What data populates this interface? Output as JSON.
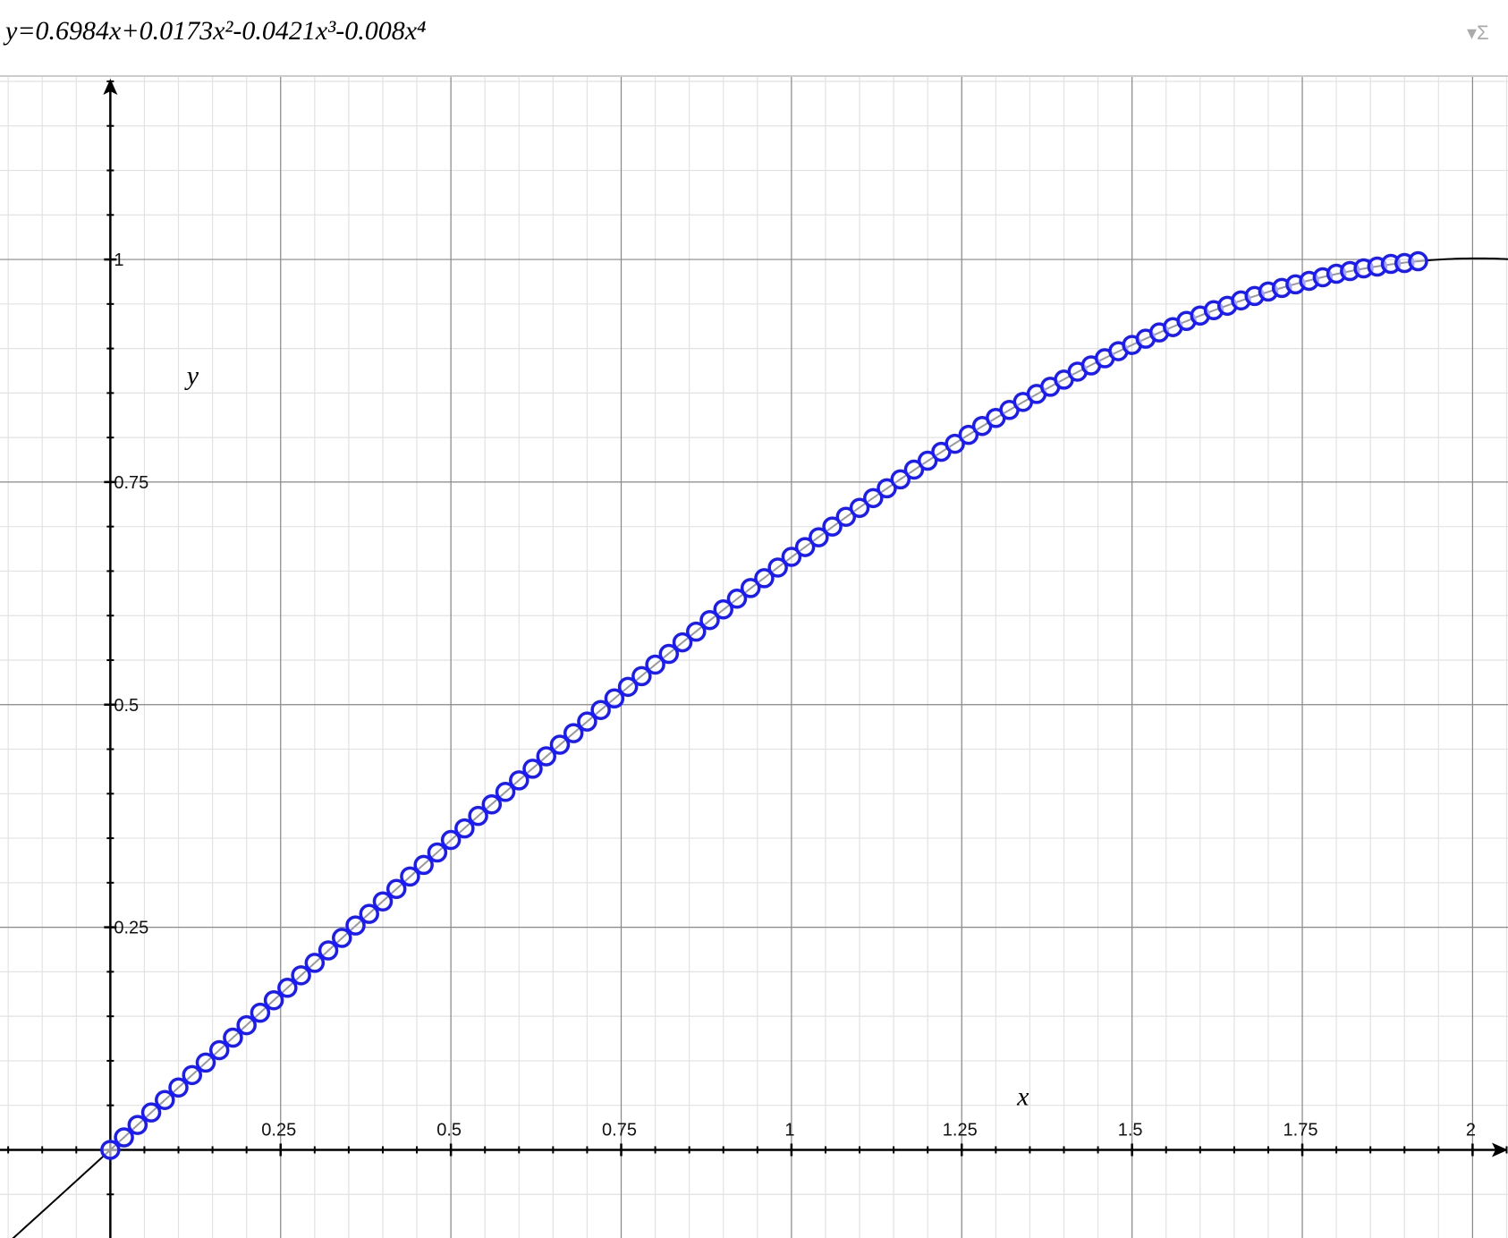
{
  "chart_data": {
    "type": "scatter",
    "title": "y=0.6984x+0.0173x²-0.0421x³-0.008x⁴",
    "x_label": "x",
    "y_label": "y",
    "fit_coefficients": [
      0.6984,
      0.0173,
      -0.0421,
      -0.008
    ],
    "x": [
      0,
      0.02,
      0.04,
      0.06,
      0.08,
      0.1,
      0.12,
      0.14,
      0.16,
      0.18,
      0.2,
      0.22,
      0.24,
      0.26,
      0.28,
      0.3,
      0.32,
      0.34,
      0.36,
      0.38,
      0.4,
      0.42,
      0.44,
      0.46,
      0.48,
      0.5,
      0.52,
      0.54,
      0.56,
      0.58,
      0.6,
      0.62,
      0.64,
      0.66,
      0.68,
      0.7,
      0.72,
      0.74,
      0.76,
      0.78,
      0.8,
      0.82,
      0.84,
      0.86,
      0.88,
      0.9,
      0.92,
      0.94,
      0.96,
      0.98,
      1,
      1.02,
      1.04,
      1.06,
      1.08,
      1.1,
      1.12,
      1.14,
      1.16,
      1.18,
      1.2,
      1.22,
      1.24,
      1.26,
      1.28,
      1.3,
      1.32,
      1.34,
      1.36,
      1.38,
      1.4,
      1.42,
      1.44,
      1.46,
      1.48,
      1.5,
      1.52,
      1.54,
      1.56,
      1.58,
      1.6,
      1.62,
      1.64,
      1.66,
      1.68,
      1.7,
      1.72,
      1.74,
      1.76,
      1.78,
      1.8,
      1.82,
      1.84,
      1.86,
      1.88,
      1.9,
      1.92
    ],
    "series": [
      {
        "color": "#1a1aff",
        "values": [
          0,
          0.014,
          0.028,
          0.042,
          0.056,
          0.07,
          0.084,
          0.098,
          0.112,
          0.126,
          0.14,
          0.154,
          0.168,
          0.182,
          0.196,
          0.21,
          0.224,
          0.238,
          0.252,
          0.265,
          0.279,
          0.293,
          0.307,
          0.32,
          0.334,
          0.348,
          0.361,
          0.375,
          0.388,
          0.402,
          0.415,
          0.428,
          0.442,
          0.455,
          0.468,
          0.481,
          0.494,
          0.507,
          0.52,
          0.532,
          0.545,
          0.557,
          0.57,
          0.582,
          0.595,
          0.607,
          0.619,
          0.631,
          0.642,
          0.654,
          0.666,
          0.677,
          0.688,
          0.7,
          0.711,
          0.721,
          0.732,
          0.743,
          0.753,
          0.764,
          0.774,
          0.784,
          0.793,
          0.803,
          0.813,
          0.822,
          0.831,
          0.84,
          0.849,
          0.857,
          0.865,
          0.874,
          0.881,
          0.889,
          0.897,
          0.904,
          0.911,
          0.918,
          0.924,
          0.931,
          0.937,
          0.943,
          0.948,
          0.954,
          0.959,
          0.964,
          0.968,
          0.972,
          0.976,
          0.98,
          0.984,
          0.987,
          0.99,
          0.992,
          0.995,
          0.996,
          0.998
        ]
      }
    ],
    "xlim": [
      -0.162,
      2.052
    ],
    "ylim": [
      -0.099,
      1.205
    ],
    "xticks": [
      0.25,
      0.5,
      0.75,
      1,
      1.25,
      1.5,
      1.75,
      2
    ],
    "yticks": [
      0.25,
      0.5,
      0.75,
      1
    ],
    "minor_step": 0.05,
    "grid": true
  }
}
